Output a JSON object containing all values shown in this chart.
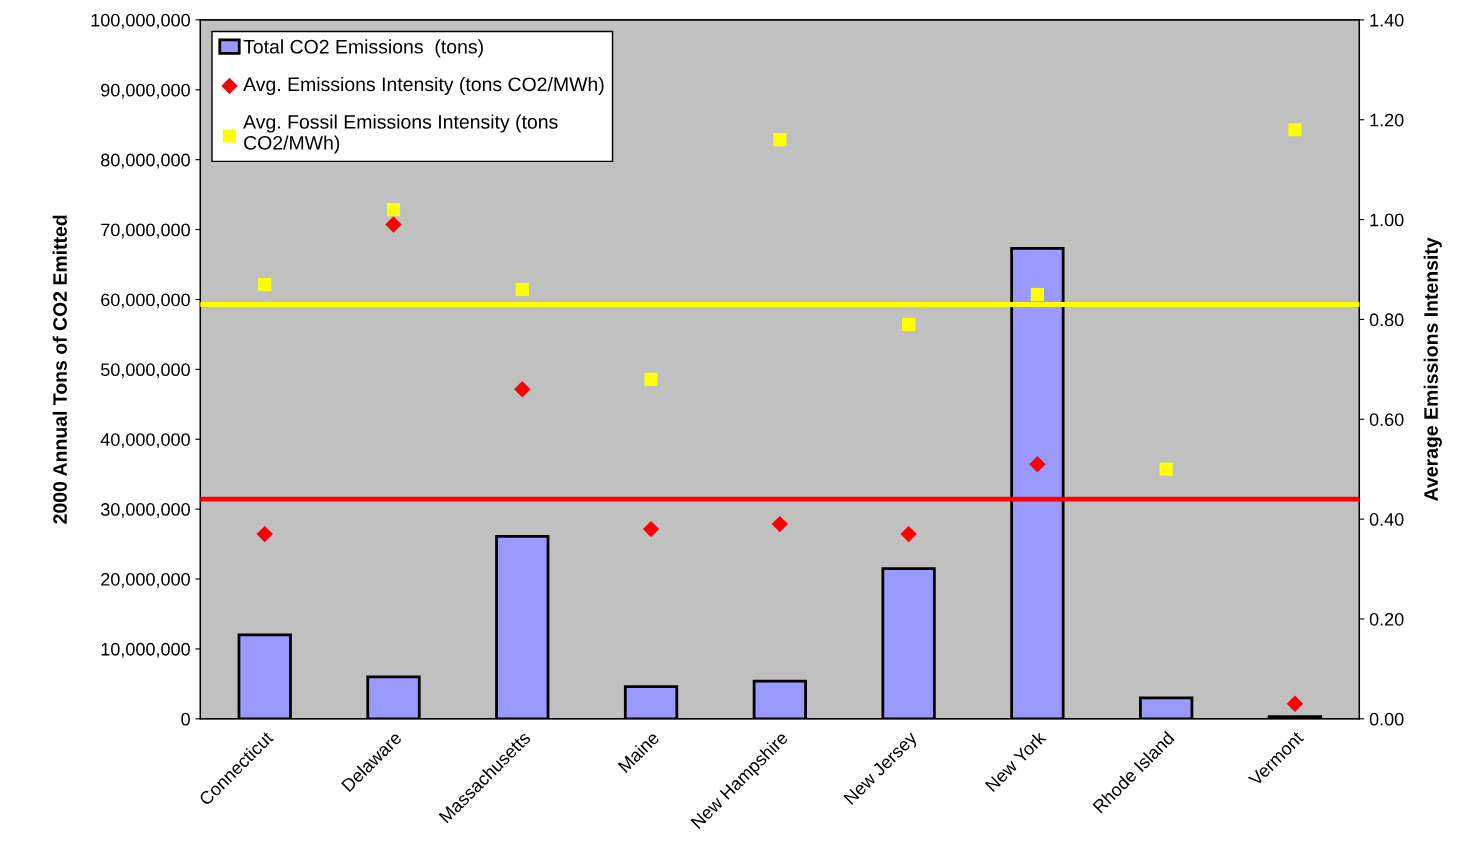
{
  "chart_data": {
    "type": "bar",
    "categories": [
      "Connecticut",
      "Delaware",
      "Massachusetts",
      "Maine",
      "New Hampshire",
      "New Jersey",
      "New York",
      "Rhode Island",
      "Vermont"
    ],
    "series": [
      {
        "name": "Total CO2 Emissions  (tons)",
        "color": "#9999ff",
        "values": [
          12000000,
          6000000,
          26100000,
          4600000,
          5400000,
          21500000,
          67300000,
          3000000,
          300000
        ]
      },
      {
        "name": "Avg. Emissions Intensity (tons CO2/MWh)",
        "type": "scatter",
        "axis": "y2",
        "marker": "diamond",
        "color": "#ff0000",
        "values": [
          0.37,
          0.99,
          0.66,
          0.38,
          0.39,
          0.37,
          0.51,
          null,
          0.03
        ]
      },
      {
        "name": "Avg. Fossil Emissions Intensity (tons\nCO2/MWh)",
        "type": "scatter",
        "axis": "y2",
        "marker": "square",
        "color": "#ffff00",
        "values": [
          0.87,
          1.02,
          0.86,
          0.68,
          1.16,
          0.79,
          0.85,
          0.5,
          1.18
        ]
      }
    ],
    "ylabel": "2000 Annual Tons of CO2 Emitted",
    "y2label": "Average Emissions Intensity",
    "ylim": [
      0,
      100000000
    ],
    "yticks": [
      {
        "value": 0,
        "label": "0"
      },
      {
        "value": 10000000,
        "label": "10,000,000"
      },
      {
        "value": 20000000,
        "label": "20,000,000"
      },
      {
        "value": 30000000,
        "label": "30,000,000"
      },
      {
        "value": 40000000,
        "label": "40,000,000"
      },
      {
        "value": 50000000,
        "label": "50,000,000"
      },
      {
        "value": 60000000,
        "label": "60,000,000"
      },
      {
        "value": 70000000,
        "label": "70,000,000"
      },
      {
        "value": 80000000,
        "label": "80,000,000"
      },
      {
        "value": 90000000,
        "label": "90,000,000"
      },
      {
        "value": 100000000,
        "label": "100,000,000"
      }
    ],
    "y2lim": [
      0,
      1.4
    ],
    "y2ticks": [
      {
        "value": 0,
        "label": "0.00"
      },
      {
        "value": 0.2,
        "label": "0.20"
      },
      {
        "value": 0.4,
        "label": "0.40"
      },
      {
        "value": 0.6,
        "label": "0.60"
      },
      {
        "value": 0.8,
        "label": "0.80"
      },
      {
        "value": 1.0,
        "label": "1.00"
      },
      {
        "value": 1.2,
        "label": "1.20"
      },
      {
        "value": 1.4,
        "label": "1.40"
      }
    ],
    "ref_lines": [
      {
        "axis": "y2",
        "value": 0.83,
        "color": "#ffff00"
      },
      {
        "axis": "y2",
        "value": 0.44,
        "color": "#ff0000"
      }
    ],
    "grid": false,
    "legend": "top left"
  }
}
